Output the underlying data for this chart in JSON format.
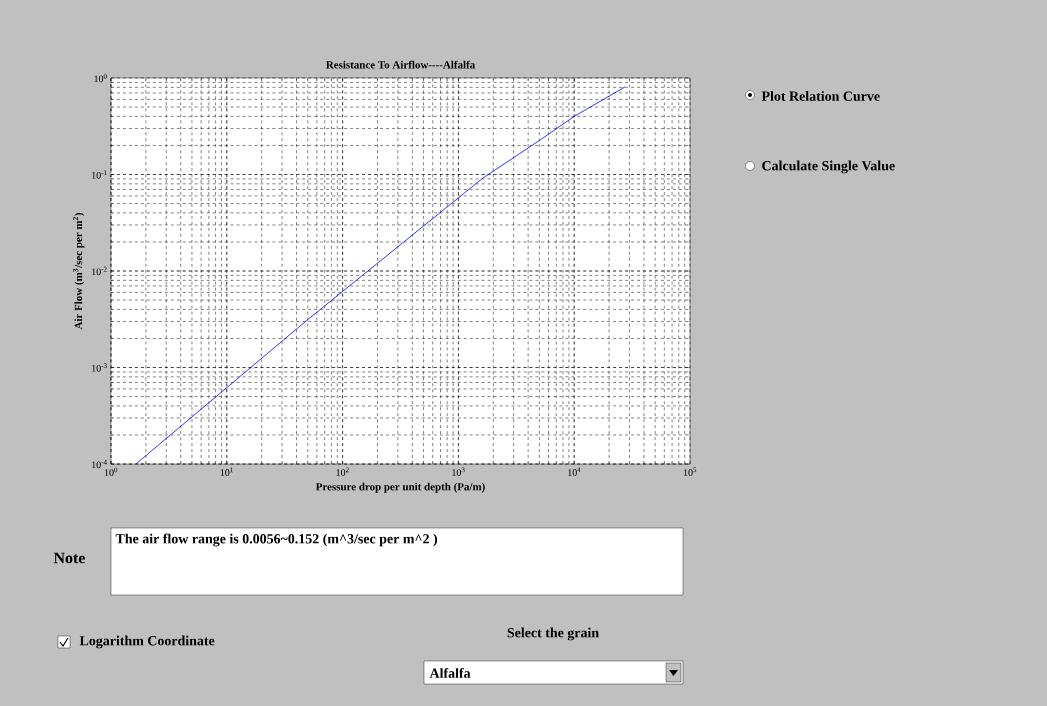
{
  "chart_data": {
    "type": "line",
    "title": "Resistance To Airflow----Alfalfa",
    "xlabel": "Pressure drop per unit depth (Pa/m)",
    "ylabel": "Air Flow (m$^{3}$/sec per m$^{2}$)",
    "series": [
      {
        "color": "#0000ff",
        "x": [
          1.64,
          51,
          1630,
          5140,
          10000,
          27500
        ],
        "values": [
          0.0001,
          0.0032,
          0.092,
          0.23,
          0.4,
          0.81
        ]
      }
    ],
    "log": "xy",
    "grid": true,
    "line_style": "solid",
    "marker": "none",
    "xlim": [
      1,
      100000
    ],
    "ylim": [
      0.0001,
      1
    ],
    "xticks": [
      {
        "value": 1,
        "label": "10$^{0}$"
      },
      {
        "value": 10,
        "label": "10$^{1}$"
      },
      {
        "value": 100,
        "label": "10$^{2}$"
      },
      {
        "value": 1000,
        "label": "10$^{3}$"
      },
      {
        "value": 10000,
        "label": "10$^{4}$"
      },
      {
        "value": 100000,
        "label": "10$^{5}$"
      }
    ],
    "yticks": [
      {
        "value": 0.0001,
        "label": "10$^{-4}$"
      },
      {
        "value": 0.001,
        "label": "10$^{-3}$"
      },
      {
        "value": 0.01,
        "label": "10$^{-2}$"
      },
      {
        "value": 0.1,
        "label": "10$^{-1}$"
      },
      {
        "value": 1,
        "label": "10$^{0}$"
      }
    ],
    "annotations": [
      "Plot Relation Curve",
      "Calculate Single Value",
      "Note",
      "The air flow range is  0.0056~0.152  (m^3/sec per m^2 )",
      "Logarithm Coordinate",
      "Select the grain",
      "Alfalfa"
    ]
  }
}
